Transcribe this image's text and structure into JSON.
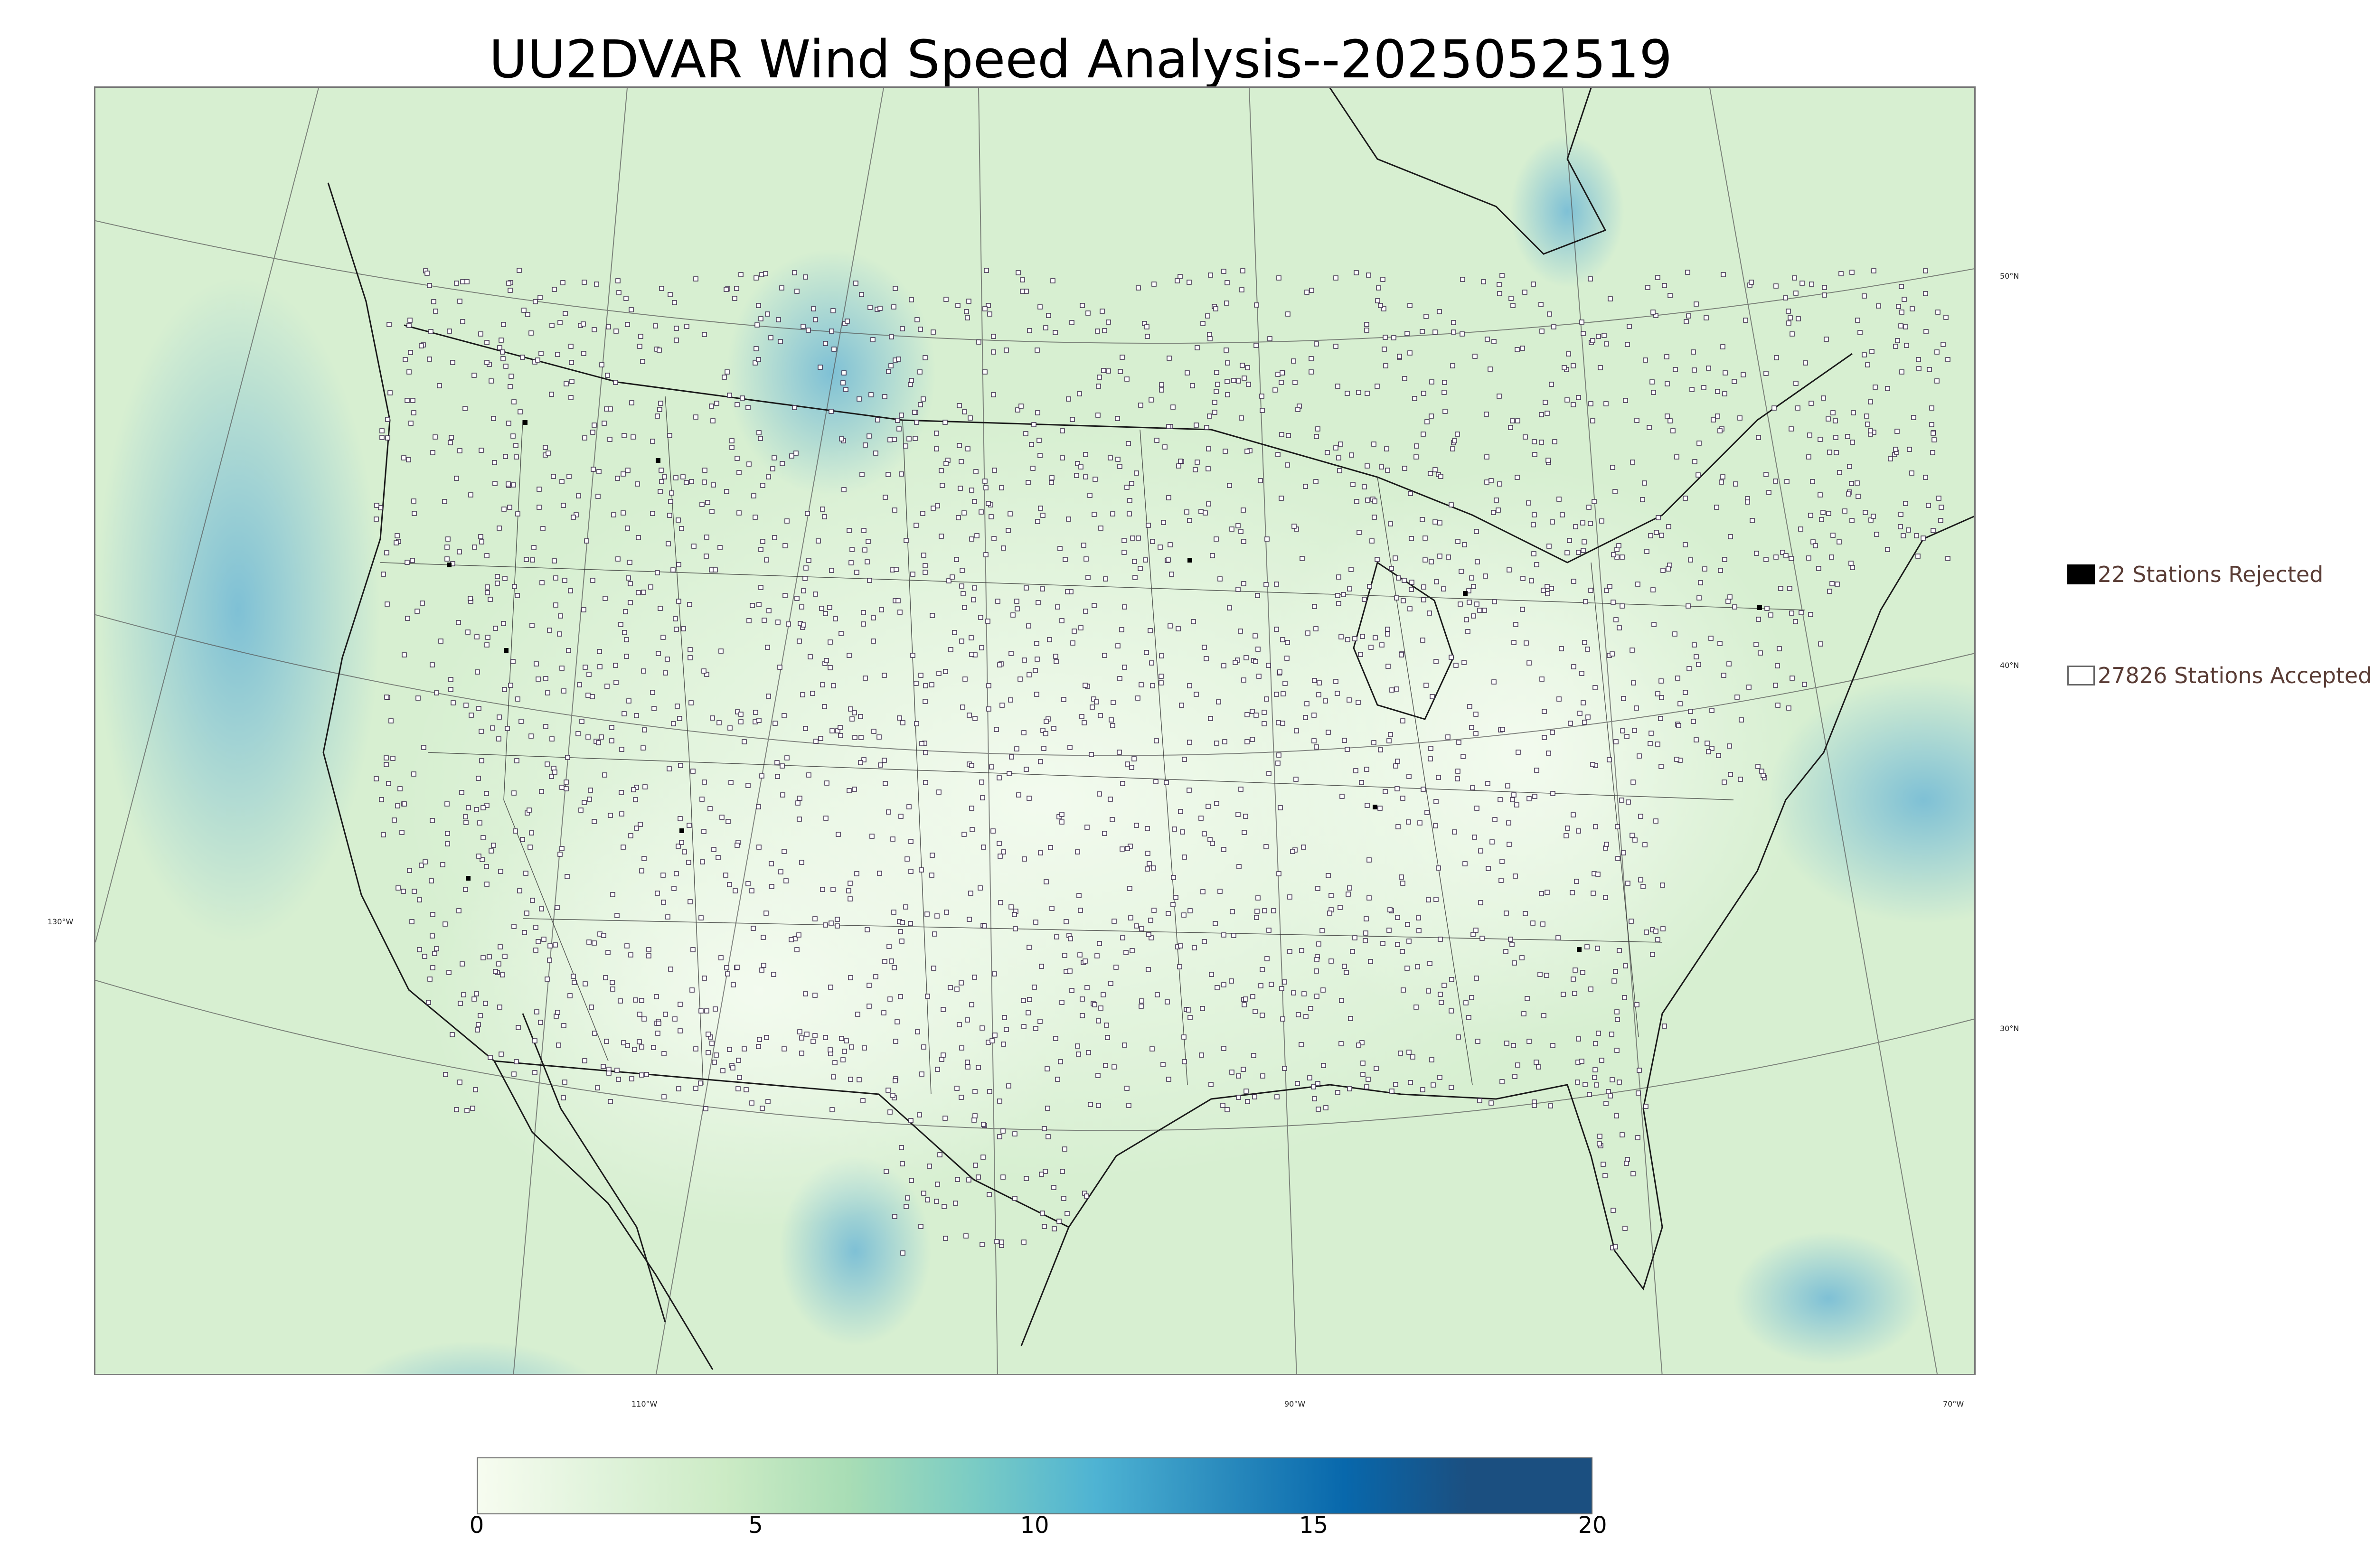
{
  "title": "UU2DVAR Wind Speed Analysis--2025052519",
  "map": {
    "background_color": "#dff2d8",
    "land_color": "#e8f6e2",
    "high_wind_color": "#6fb8d6",
    "station_edge_color": "#3b2a4a",
    "rejected_color": "#000000",
    "projection_lines_color": "#555555"
  },
  "lat_labels": [
    "50°N",
    "40°N",
    "30°N"
  ],
  "lon_labels_left": [
    "130°W"
  ],
  "lon_labels_bottom": [
    "110°W",
    "90°W",
    "70°W"
  ],
  "legend": {
    "rejected": {
      "label": "22 Stations Rejected",
      "fill": "#000000"
    },
    "accepted": {
      "label": "27826 Stations Accepted",
      "fill": "#ffffff"
    }
  },
  "colorbar": {
    "ticks": [
      "0",
      "5",
      "10",
      "15",
      "20"
    ],
    "range": [
      0,
      20
    ],
    "colors": [
      "#f7fcf0",
      "#e0f3db",
      "#ccebc5",
      "#a8ddb5",
      "#7bccc4",
      "#4eb3d3",
      "#2b8cbe",
      "#0868ac",
      "#1b4f80"
    ]
  },
  "chart_data": {
    "type": "heatmap",
    "title": "UU2DVAR Wind Speed Analysis--2025052519",
    "colorbar_range": [
      0,
      20
    ],
    "colorbar_ticks": [
      0,
      5,
      10,
      15,
      20
    ],
    "stations_rejected": 22,
    "stations_accepted": 27826
  }
}
